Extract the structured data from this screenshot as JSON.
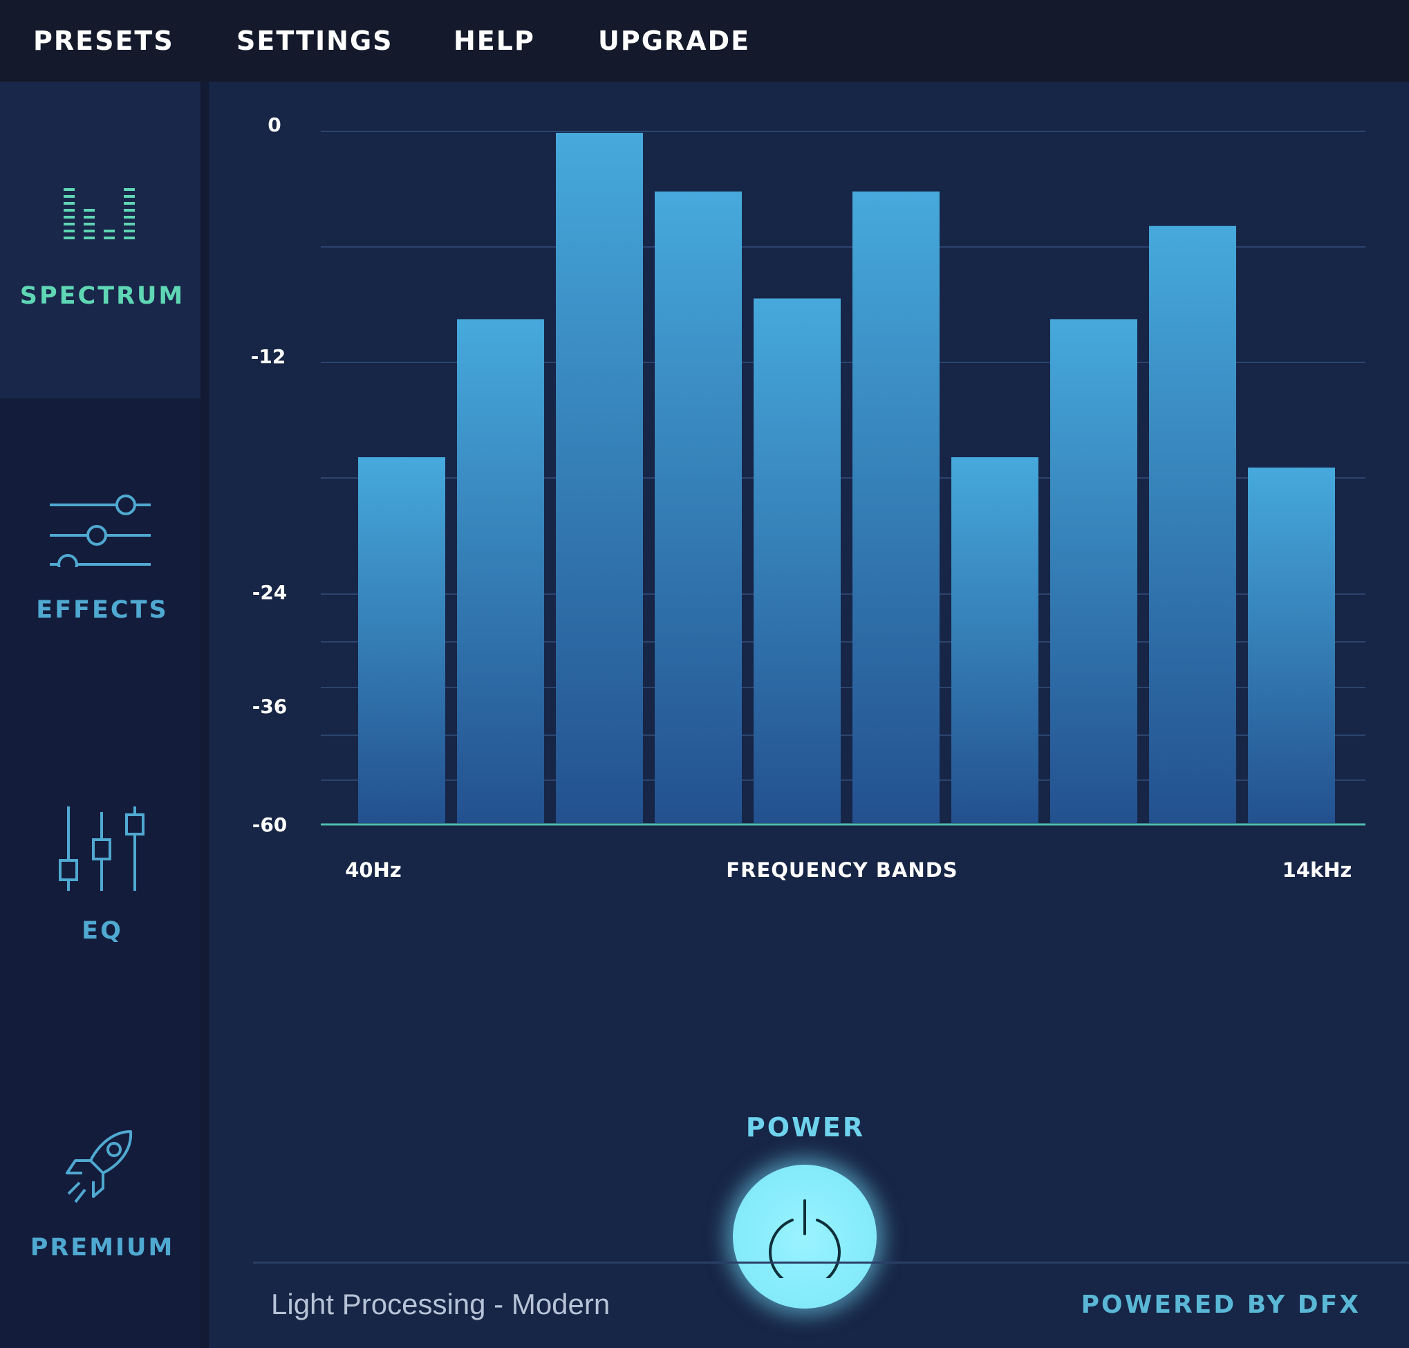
{
  "menu": {
    "presets": "PRESETS",
    "settings": "SETTINGS",
    "help": "HELP",
    "upgrade": "UPGRADE"
  },
  "sidebar": {
    "items": [
      {
        "label": "SPECTRUM",
        "icon": "spectrum-icon",
        "active": true
      },
      {
        "label": "EFFECTS",
        "icon": "sliders-icon",
        "active": false
      },
      {
        "label": "EQ",
        "icon": "eq-icon",
        "active": false
      },
      {
        "label": "PREMIUM",
        "icon": "rocket-icon",
        "active": false
      }
    ]
  },
  "chart_data": {
    "type": "bar",
    "y_tick_labels": [
      "0",
      "-12",
      "-24",
      "-36",
      "-60"
    ],
    "x_start_label": "40Hz",
    "x_center_label": "FREQUENCY BANDS",
    "x_end_label": "14kHz",
    "level_fractions": [
      0.53,
      0.73,
      1.0,
      0.915,
      0.76,
      0.915,
      0.53,
      0.73,
      0.865,
      0.515
    ],
    "grid": true
  },
  "power": {
    "label": "POWER",
    "state": "on"
  },
  "footer": {
    "preset_name": "Light Processing - Modern",
    "branding": "POWERED BY DFX"
  },
  "colors": {
    "background": "#172546",
    "topbar": "#141a2b",
    "sidebar": "#141c3b",
    "accent_green": "#5fd6b4",
    "accent_cyan": "#5ab8d6",
    "bar_top": "#46a9dc",
    "bar_bottom": "#23518f",
    "power_glow": "#86ebfb"
  }
}
